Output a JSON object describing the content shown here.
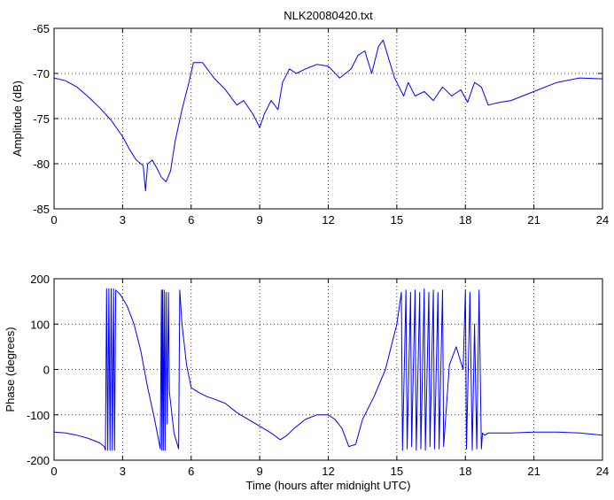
{
  "chart_data": [
    {
      "type": "line",
      "title": "NLK20080420.txt",
      "xlabel": "",
      "ylabel": "Amplitude (dB)",
      "xlim": [
        0,
        24
      ],
      "ylim": [
        -85,
        -65
      ],
      "xticks": [
        0,
        3,
        6,
        9,
        12,
        15,
        18,
        21,
        24
      ],
      "yticks": [
        -85,
        -80,
        -75,
        -70,
        -65
      ],
      "grid": true,
      "series": [
        {
          "color": "#0000ff",
          "x": [
            0,
            0.5,
            1,
            1.5,
            2,
            2.5,
            3,
            3.3,
            3.6,
            3.9,
            4.0,
            4.1,
            4.3,
            4.5,
            4.7,
            4.9,
            5.1,
            5.3,
            5.6,
            5.9,
            6.1,
            6.5,
            7,
            7.5,
            8,
            8.3,
            8.7,
            9.0,
            9.2,
            9.5,
            9.8,
            10.0,
            10.3,
            10.6,
            11,
            11.5,
            12,
            12.5,
            13,
            13.3,
            13.6,
            13.9,
            14.2,
            14.4,
            14.6,
            14.9,
            15.1,
            15.3,
            15.5,
            15.8,
            16.2,
            16.6,
            17,
            17.4,
            17.8,
            18.1,
            18.4,
            18.7,
            19.0,
            19.5,
            20,
            21,
            22,
            23,
            24
          ],
          "y": [
            -70.5,
            -70.8,
            -71.5,
            -72.6,
            -73.8,
            -75.2,
            -77.0,
            -78.4,
            -79.6,
            -80.2,
            -83.0,
            -80.0,
            -79.6,
            -80.5,
            -81.5,
            -82.0,
            -80.8,
            -77.5,
            -74.0,
            -71.0,
            -68.8,
            -68.8,
            -70.5,
            -71.8,
            -73.5,
            -73.0,
            -74.5,
            -76.0,
            -74.5,
            -73.0,
            -74.0,
            -71.0,
            -69.5,
            -70.0,
            -69.5,
            -69.0,
            -69.2,
            -70.5,
            -69.5,
            -68.0,
            -67.5,
            -70.0,
            -67.0,
            -66.3,
            -68.0,
            -70.5,
            -71.5,
            -72.5,
            -71.0,
            -72.5,
            -72.0,
            -73.0,
            -71.5,
            -72.5,
            -71.8,
            -73.2,
            -71.0,
            -71.5,
            -73.5,
            -73.2,
            -73.0,
            -72.0,
            -71.0,
            -70.5,
            -70.6
          ]
        }
      ]
    },
    {
      "type": "line",
      "title": "",
      "xlabel": "Time (hours after midnight UTC)",
      "ylabel": "Phase (degrees)",
      "xlim": [
        0,
        24
      ],
      "ylim": [
        -200,
        200
      ],
      "xticks": [
        0,
        3,
        6,
        9,
        12,
        15,
        18,
        21,
        24
      ],
      "yticks": [
        -200,
        -100,
        0,
        100,
        200
      ],
      "grid": true,
      "series": [
        {
          "color": "#0000ff",
          "x": [
            0,
            0.5,
            1,
            1.5,
            2,
            2.2,
            2.25,
            2.3,
            2.35,
            2.4,
            2.45,
            2.5,
            2.55,
            2.6,
            2.65,
            2.7,
            2.9,
            3.2,
            3.5,
            3.8,
            4.1,
            4.4,
            4.65,
            4.7,
            4.72,
            4.75,
            4.78,
            4.82,
            4.86,
            4.9,
            4.95,
            5.0,
            5.05,
            5.25,
            5.45,
            5.5,
            5.52,
            5.6,
            5.8,
            6.0,
            6.3,
            6.7,
            7,
            7.5,
            8,
            8.5,
            9,
            9.5,
            9.9,
            10.2,
            10.5,
            11,
            11.5,
            12,
            12.3,
            12.6,
            12.9,
            13.2,
            13.5,
            14,
            14.5,
            15,
            15.2,
            15.25,
            15.4,
            15.45,
            15.6,
            15.65,
            15.8,
            15.85,
            16.0,
            16.05,
            16.2,
            16.25,
            16.4,
            16.45,
            16.6,
            16.65,
            16.8,
            16.85,
            17.0,
            17.05,
            17.3,
            17.6,
            17.9,
            18.0,
            18.05,
            18.2,
            18.3,
            18.4,
            18.5,
            18.6,
            18.7,
            18.75,
            18.85,
            19.0,
            20,
            21,
            22,
            23,
            24
          ],
          "y": [
            -138,
            -140,
            -145,
            -152,
            -162,
            -170,
            -178,
            178,
            -178,
            178,
            -178,
            178,
            -178,
            178,
            -178,
            175,
            165,
            140,
            100,
            40,
            -40,
            -110,
            -175,
            175,
            -178,
            175,
            -178,
            175,
            -178,
            170,
            -120,
            170,
            -50,
            -140,
            -175,
            175,
            160,
            100,
            10,
            -40,
            -50,
            -60,
            -65,
            -75,
            -95,
            -110,
            -125,
            -140,
            -155,
            -145,
            -130,
            -110,
            -100,
            -100,
            -110,
            -130,
            -170,
            -165,
            -110,
            -60,
            0,
            100,
            170,
            -178,
            175,
            -175,
            170,
            -170,
            175,
            -178,
            170,
            -175,
            178,
            -178,
            170,
            -170,
            175,
            -175,
            170,
            -175,
            175,
            -170,
            10,
            50,
            0,
            175,
            -175,
            170,
            -178,
            100,
            -175,
            175,
            -175,
            -140,
            -145,
            -140,
            -140,
            -138,
            -138,
            -140,
            -145
          ]
        }
      ]
    }
  ]
}
